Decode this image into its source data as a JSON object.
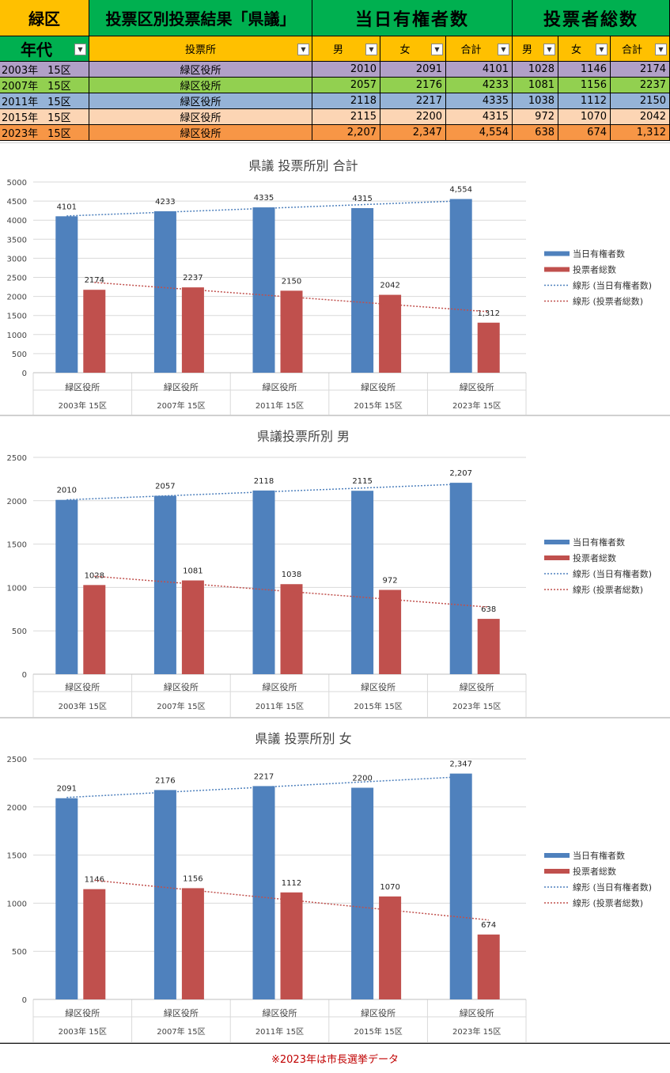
{
  "colors": {
    "header_green": "#00b050",
    "header_orange": "#ffc000",
    "row_colors": [
      "#b1a0c7",
      "#92d050",
      "#95b3d7",
      "#fcd5b4",
      "#f79646"
    ],
    "bar_blue": "#4f81bd",
    "bar_red": "#c0504d",
    "note_red": "#c00000"
  },
  "table": {
    "ward_title": "緑区",
    "main_title": "投票区別投票結果「県議」",
    "group_voters": "当日有権者数",
    "group_ballots": "投票者総数",
    "col_year": "年代",
    "col_place": "投票所",
    "col_male": "男",
    "col_female": "女",
    "col_total": "合計",
    "rows": [
      {
        "year": "2003年",
        "district": "15区",
        "place": "緑区役所",
        "v_m": "2010",
        "v_f": "2091",
        "v_t": "4101",
        "b_m": "1028",
        "b_f": "1146",
        "b_t": "2174"
      },
      {
        "year": "2007年",
        "district": "15区",
        "place": "緑区役所",
        "v_m": "2057",
        "v_f": "2176",
        "v_t": "4233",
        "b_m": "1081",
        "b_f": "1156",
        "b_t": "2237"
      },
      {
        "year": "2011年",
        "district": "15区",
        "place": "緑区役所",
        "v_m": "2118",
        "v_f": "2217",
        "v_t": "4335",
        "b_m": "1038",
        "b_f": "1112",
        "b_t": "2150"
      },
      {
        "year": "2015年",
        "district": "15区",
        "place": "緑区役所",
        "v_m": "2115",
        "v_f": "2200",
        "v_t": "4315",
        "b_m": "972",
        "b_f": "1070",
        "b_t": "2042"
      },
      {
        "year": "2023年",
        "district": "15区",
        "place": "緑区役所",
        "v_m": "2,207",
        "v_f": "2,347",
        "v_t": "4,554",
        "b_m": "638",
        "b_f": "674",
        "b_t": "1,312"
      }
    ]
  },
  "chart_data": [
    {
      "type": "bar",
      "title": "県議  投票所別  合計",
      "categories": [
        "緑区役所",
        "緑区役所",
        "緑区役所",
        "緑区役所",
        "緑区役所"
      ],
      "category_groups": [
        "2003年      15区",
        "2007年      15区",
        "2011年      15区",
        "2015年      15区",
        "2023年      15区"
      ],
      "series": [
        {
          "name": "当日有権者数",
          "values": [
            4101,
            4233,
            4335,
            4315,
            4554
          ],
          "labels": [
            "4101",
            "4233",
            "4335",
            "4315",
            "4,554"
          ]
        },
        {
          "name": "投票者総数",
          "values": [
            2174,
            2237,
            2150,
            2042,
            1312
          ],
          "labels": [
            "2174",
            "2237",
            "2150",
            "2042",
            "1,312"
          ]
        }
      ],
      "trendlines": [
        "線形 (当日有権者数)",
        "線形 (投票者総数)"
      ],
      "ylim": [
        0,
        5000
      ],
      "yticks": [
        0,
        500,
        1000,
        1500,
        2000,
        2500,
        3000,
        3500,
        4000,
        4500,
        5000
      ],
      "grid": true,
      "legend": "right"
    },
    {
      "type": "bar",
      "title": "県議投票所別  男",
      "categories": [
        "緑区役所",
        "緑区役所",
        "緑区役所",
        "緑区役所",
        "緑区役所"
      ],
      "category_groups": [
        "2003年      15区",
        "2007年      15区",
        "2011年      15区",
        "2015年      15区",
        "2023年      15区"
      ],
      "series": [
        {
          "name": "当日有権者数",
          "values": [
            2010,
            2057,
            2118,
            2115,
            2207
          ],
          "labels": [
            "2010",
            "2057",
            "2118",
            "2115",
            "2,207"
          ]
        },
        {
          "name": "投票者総数",
          "values": [
            1028,
            1081,
            1038,
            972,
            638
          ],
          "labels": [
            "1028",
            "1081",
            "1038",
            "972",
            "638"
          ]
        }
      ],
      "trendlines": [
        "線形 (当日有権者数)",
        "線形 (投票者総数)"
      ],
      "ylim": [
        0,
        2500
      ],
      "yticks": [
        0,
        500,
        1000,
        1500,
        2000,
        2500
      ],
      "grid": true,
      "legend": "right"
    },
    {
      "type": "bar",
      "title": "県議  投票所別  女",
      "categories": [
        "緑区役所",
        "緑区役所",
        "緑区役所",
        "緑区役所",
        "緑区役所"
      ],
      "category_groups": [
        "2003年      15区",
        "2007年      15区",
        "2011年      15区",
        "2015年      15区",
        "2023年      15区"
      ],
      "series": [
        {
          "name": "当日有権者数",
          "values": [
            2091,
            2176,
            2217,
            2200,
            2347
          ],
          "labels": [
            "2091",
            "2176",
            "2217",
            "2200",
            "2,347"
          ]
        },
        {
          "name": "投票者総数",
          "values": [
            1146,
            1156,
            1112,
            1070,
            674
          ],
          "labels": [
            "1146",
            "1156",
            "1112",
            "1070",
            "674"
          ]
        }
      ],
      "trendlines": [
        "線形 (当日有権者数)",
        "線形 (投票者総数)"
      ],
      "ylim": [
        0,
        2500
      ],
      "yticks": [
        0,
        500,
        1000,
        1500,
        2000,
        2500
      ],
      "grid": true,
      "legend": "right"
    }
  ],
  "footer_note": "※2023年は市長選挙データ"
}
